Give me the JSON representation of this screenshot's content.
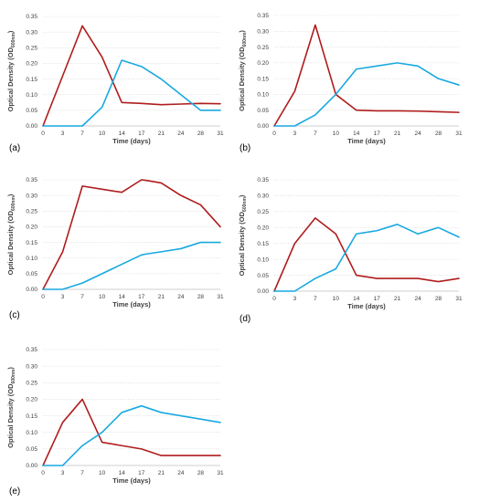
{
  "figure": {
    "colors": {
      "red": "#b01c1c",
      "blue": "#19a9e0"
    }
  },
  "chart_data": [
    {
      "type": "line",
      "panel_label": "(a)",
      "xlabel": "Time (days)",
      "ylabel_main": "Optical Density (OD",
      "ylabel_sub": "600nm",
      "ylabel_close": ")",
      "x": [
        0,
        3,
        7,
        10,
        14,
        17,
        21,
        24,
        28,
        31
      ],
      "x_tick_labels": [
        "0",
        "3",
        "7",
        "10",
        "14",
        "17",
        "21",
        "24",
        "28",
        "31"
      ],
      "y_tick_labels": [
        "0.00",
        "0.05",
        "0.10",
        "0.15",
        "0.20",
        "0.25",
        "0.30",
        "0.35"
      ],
      "ylim": [
        0,
        0.35
      ],
      "grid": true,
      "series": [
        {
          "color": "#b01c1c",
          "values": [
            0.0,
            0.16,
            0.32,
            0.22,
            0.075,
            0.072,
            0.068,
            0.07,
            0.072,
            0.071
          ]
        },
        {
          "color": "#19a9e0",
          "values": [
            0.0,
            0.0,
            0.0,
            0.06,
            0.21,
            0.19,
            0.15,
            0.1,
            0.05,
            0.05
          ]
        }
      ]
    },
    {
      "type": "line",
      "panel_label": "(b)",
      "xlabel": "Time (days)",
      "ylabel_main": "Optical Density (OD",
      "ylabel_sub": "600nm",
      "ylabel_close": ")",
      "x": [
        0,
        3,
        7,
        10,
        14,
        17,
        21,
        24,
        28,
        31
      ],
      "x_tick_labels": [
        "0",
        "3",
        "7",
        "10",
        "14",
        "17",
        "21",
        "24",
        "28",
        "31"
      ],
      "y_tick_labels": [
        "0.00",
        "0.05",
        "0.10",
        "0.15",
        "0.20",
        "0.25",
        "0.30",
        "0.35"
      ],
      "ylim": [
        0,
        0.35
      ],
      "grid": true,
      "series": [
        {
          "color": "#b01c1c",
          "values": [
            0.0,
            0.11,
            0.32,
            0.1,
            0.05,
            0.048,
            0.048,
            0.047,
            0.045,
            0.043
          ]
        },
        {
          "color": "#19a9e0",
          "values": [
            0.0,
            0.0,
            0.035,
            0.1,
            0.18,
            0.19,
            0.2,
            0.19,
            0.15,
            0.13
          ]
        }
      ]
    },
    {
      "type": "line",
      "panel_label": "(c)",
      "xlabel": "Time (days)",
      "ylabel_main": "Optical Density (OD",
      "ylabel_sub": "600nm",
      "ylabel_close": ")",
      "x": [
        0,
        3,
        7,
        10,
        14,
        17,
        18,
        21,
        24,
        28,
        31
      ],
      "x_tick_labels": [
        "0",
        "3",
        "7",
        "10",
        "14",
        "17",
        "21",
        "24",
        "28",
        "31"
      ],
      "x_ticks": [
        0,
        3,
        7,
        10,
        14,
        17,
        21,
        24,
        28,
        31
      ],
      "y_tick_labels": [
        "0.00",
        "0.05",
        "0.10",
        "0.15",
        "0.20",
        "0.25",
        "0.30",
        "0.35"
      ],
      "ylim": [
        0,
        0.35
      ],
      "grid": true,
      "series": [
        {
          "color": "#b01c1c",
          "values": [
            0.0,
            0.12,
            0.33,
            0.32,
            0.31,
            0.35,
            0.348,
            0.34,
            0.3,
            0.27,
            0.2
          ]
        },
        {
          "color": "#19a9e0",
          "values": [
            0.0,
            0.0,
            0.02,
            0.05,
            0.08,
            0.11,
            0.113,
            0.12,
            0.13,
            0.15,
            0.15
          ]
        }
      ]
    },
    {
      "type": "line",
      "panel_label": "(d)",
      "xlabel": "Time (days)",
      "ylabel_main": "Optical Density (OD",
      "ylabel_sub": "600nm",
      "ylabel_close": ")",
      "x": [
        0,
        3,
        7,
        10,
        14,
        17,
        21,
        24,
        28,
        31
      ],
      "x_tick_labels": [
        "0",
        "3",
        "7",
        "10",
        "14",
        "17",
        "21",
        "24",
        "28",
        "31"
      ],
      "y_tick_labels": [
        "0.00",
        "0.05",
        "0.10",
        "0.15",
        "0.20",
        "0.25",
        "0.30",
        "0.35"
      ],
      "ylim": [
        0,
        0.35
      ],
      "grid": true,
      "series": [
        {
          "color": "#b01c1c",
          "values": [
            0.0,
            0.15,
            0.23,
            0.18,
            0.05,
            0.04,
            0.04,
            0.04,
            0.03,
            0.04
          ]
        },
        {
          "color": "#19a9e0",
          "values": [
            0.0,
            0.0,
            0.04,
            0.07,
            0.18,
            0.19,
            0.21,
            0.18,
            0.2,
            0.17
          ]
        }
      ]
    },
    {
      "type": "line",
      "panel_label": "(e)",
      "xlabel": "Time (days)",
      "ylabel_main": "Optical Density (OD",
      "ylabel_sub": "600nm",
      "ylabel_close": ")",
      "x": [
        0,
        3,
        7,
        10,
        14,
        17,
        21,
        24,
        28,
        31
      ],
      "x_tick_labels": [
        "0",
        "3",
        "7",
        "10",
        "14",
        "17",
        "21",
        "24",
        "28",
        "31"
      ],
      "y_tick_labels": [
        "0.00",
        "0.05",
        "0.10",
        "0.15",
        "0.20",
        "0.25",
        "0.30",
        "0.35"
      ],
      "ylim": [
        0,
        0.35
      ],
      "grid": true,
      "series": [
        {
          "color": "#b01c1c",
          "values": [
            0.0,
            0.13,
            0.2,
            0.07,
            0.06,
            0.05,
            0.03,
            0.03,
            0.03,
            0.03
          ]
        },
        {
          "color": "#19a9e0",
          "values": [
            0.0,
            0.0,
            0.06,
            0.1,
            0.16,
            0.18,
            0.16,
            0.15,
            0.14,
            0.13
          ]
        }
      ]
    }
  ]
}
